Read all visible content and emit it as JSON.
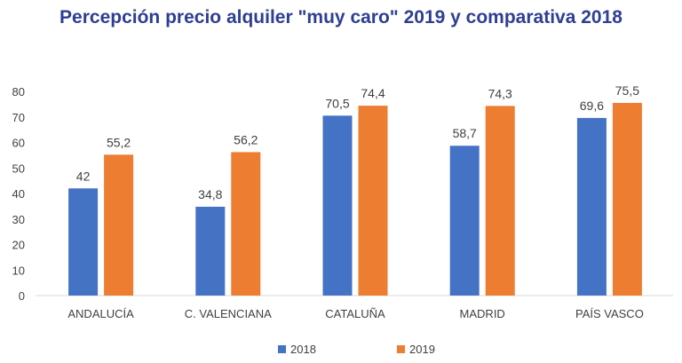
{
  "chart_data": {
    "type": "bar",
    "title": "Percepción precio alquiler \"muy caro\" 2019 y comparativa 2018",
    "categories": [
      "ANDALUCÍA",
      "C. VALENCIANA",
      "CATALUÑA",
      "MADRID",
      "PAÍS VASCO"
    ],
    "series": [
      {
        "name": "2018",
        "values": [
          42,
          34.8,
          70.5,
          58.7,
          69.6
        ],
        "labels": [
          "42",
          "34,8",
          "70,5",
          "58,7",
          "69,6"
        ],
        "color": "#4472c4"
      },
      {
        "name": "2019",
        "values": [
          55.2,
          56.2,
          74.4,
          74.3,
          75.5
        ],
        "labels": [
          "55,2",
          "56,2",
          "74,4",
          "74,3",
          "75,5"
        ],
        "color": "#ed7d31"
      }
    ],
    "ylim": [
      0,
      80
    ],
    "yticks": [
      "0",
      "10",
      "20",
      "30",
      "40",
      "50",
      "60",
      "70",
      "80"
    ],
    "xlabel": "",
    "ylabel": "",
    "grid": false,
    "legend": "bottom"
  }
}
